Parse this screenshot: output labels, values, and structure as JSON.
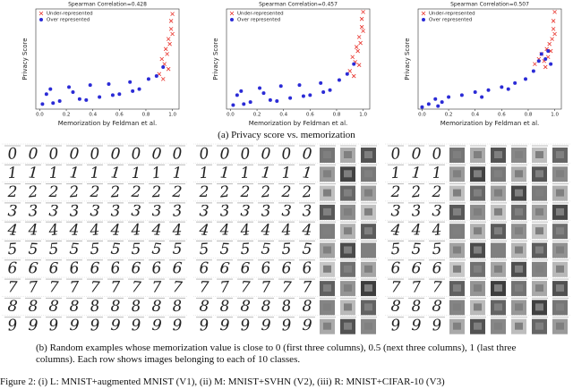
{
  "chart_data": [
    {
      "type": "scatter",
      "title": "Spearman Correlation=0.428",
      "x_label": "Memorization by Feldman et al.",
      "y_label": "Privacy Score",
      "xlim": [
        -0.03,
        1.05
      ],
      "ylim": [
        0,
        1
      ],
      "xticks": [
        {
          "value": 0,
          "label": "0.0"
        },
        0.2,
        0.4,
        0.6,
        0.8,
        {
          "value": 1,
          "label": "1.0"
        }
      ],
      "legend": "upper-left",
      "series": [
        {
          "name": "Under-represented",
          "color": "#e8322b",
          "marker": "x",
          "x": [
            0.9,
            0.92,
            0.94,
            0.95,
            0.96,
            0.97,
            0.98,
            0.99,
            1.0,
            0.93,
            0.97,
            0.99,
            1.0
          ],
          "values": [
            0.35,
            0.5,
            0.45,
            0.6,
            0.55,
            0.7,
            0.65,
            0.8,
            0.95,
            0.3,
            0.4,
            0.88,
            0.75
          ]
        },
        {
          "name": "Over represented",
          "color": "#2b2bd6",
          "marker": "o",
          "x": [
            0.02,
            0.08,
            0.15,
            0.22,
            0.3,
            0.38,
            0.45,
            0.52,
            0.6,
            0.68,
            0.75,
            0.82,
            0.88,
            0.93,
            0.1,
            0.35,
            0.55,
            0.7,
            0.05,
            0.25
          ],
          "values": [
            0.05,
            0.2,
            0.08,
            0.22,
            0.1,
            0.24,
            0.12,
            0.25,
            0.15,
            0.27,
            0.2,
            0.3,
            0.33,
            0.42,
            0.06,
            0.09,
            0.14,
            0.18,
            0.15,
            0.17
          ]
        }
      ]
    },
    {
      "type": "scatter",
      "title": "Spearman Correlation=0.457",
      "x_label": "Memorization by Feldman et al.",
      "y_label": "Privacy Score",
      "xlim": [
        -0.03,
        1.05
      ],
      "ylim": [
        0,
        1
      ],
      "xticks": [
        {
          "value": 0,
          "label": "0.0"
        },
        0.2,
        0.4,
        0.6,
        0.8,
        {
          "value": 1,
          "label": "1.0"
        }
      ],
      "legend": "upper-left",
      "series": [
        {
          "name": "Under-represented",
          "color": "#e8322b",
          "marker": "x",
          "x": [
            0.9,
            0.92,
            0.94,
            0.95,
            0.96,
            0.97,
            0.98,
            0.99,
            1.0,
            0.93,
            0.97,
            0.99,
            1.0
          ],
          "values": [
            0.38,
            0.52,
            0.47,
            0.62,
            0.58,
            0.72,
            0.66,
            0.82,
            0.97,
            0.33,
            0.44,
            0.9,
            0.78
          ]
        },
        {
          "name": "Over represented",
          "color": "#2b2bd6",
          "marker": "o",
          "x": [
            0.02,
            0.08,
            0.15,
            0.22,
            0.3,
            0.38,
            0.45,
            0.52,
            0.6,
            0.68,
            0.75,
            0.82,
            0.88,
            0.93,
            0.1,
            0.35,
            0.55,
            0.7,
            0.05,
            0.25
          ],
          "values": [
            0.04,
            0.18,
            0.07,
            0.21,
            0.09,
            0.23,
            0.11,
            0.24,
            0.14,
            0.26,
            0.19,
            0.29,
            0.35,
            0.45,
            0.05,
            0.08,
            0.13,
            0.17,
            0.14,
            0.16
          ]
        }
      ]
    },
    {
      "type": "scatter",
      "title": "Spearman Correlation=0.507",
      "x_label": "Memorization by Feldman et al.",
      "y_label": "Privacy Score",
      "xlim": [
        -0.03,
        1.05
      ],
      "ylim": [
        0,
        1
      ],
      "xticks": [
        {
          "value": 0,
          "label": "0.0"
        },
        0.2,
        0.4,
        0.6,
        0.8,
        {
          "value": 1,
          "label": "1.0"
        }
      ],
      "legend": "upper-left",
      "series": [
        {
          "name": "Under-represented",
          "color": "#e8322b",
          "marker": "x",
          "x": [
            0.85,
            0.88,
            0.9,
            0.92,
            0.94,
            0.95,
            0.96,
            0.97,
            0.98,
            0.99,
            1.0,
            0.93,
            0.99,
            1.0
          ],
          "values": [
            0.45,
            0.5,
            0.55,
            0.48,
            0.6,
            0.52,
            0.65,
            0.58,
            0.7,
            0.8,
            0.97,
            0.42,
            0.88,
            0.75
          ]
        },
        {
          "name": "Over represented",
          "color": "#2b2bd6",
          "marker": "o",
          "x": [
            0.0,
            0.05,
            0.1,
            0.15,
            0.2,
            0.3,
            0.4,
            0.5,
            0.6,
            0.7,
            0.78,
            0.84,
            0.88,
            0.9,
            0.93,
            0.95,
            0.97,
            0.12,
            0.45,
            0.65
          ],
          "values": [
            0.02,
            0.05,
            0.1,
            0.07,
            0.12,
            0.14,
            0.17,
            0.19,
            0.22,
            0.26,
            0.3,
            0.38,
            0.48,
            0.55,
            0.5,
            0.58,
            0.45,
            0.03,
            0.12,
            0.2
          ]
        }
      ]
    }
  ],
  "image_grid": {
    "classes": [
      "0",
      "1",
      "2",
      "3",
      "4",
      "5",
      "6",
      "7",
      "8",
      "9"
    ]
  },
  "captions": {
    "a": "(a) Privacy score vs. memorization",
    "b": "(b) Random examples whose memorization value is close to 0 (first three columns), 0.5 (next three columns), 1 (last three columns). Each row shows images belonging to each of 10 classes.",
    "figure": "Figure 2: (i) L: MNIST+augmented MNIST (V1), (ii) M: MNIST+SVHN (V2), (iii) R: MNIST+CIFAR-10 (V3)"
  }
}
